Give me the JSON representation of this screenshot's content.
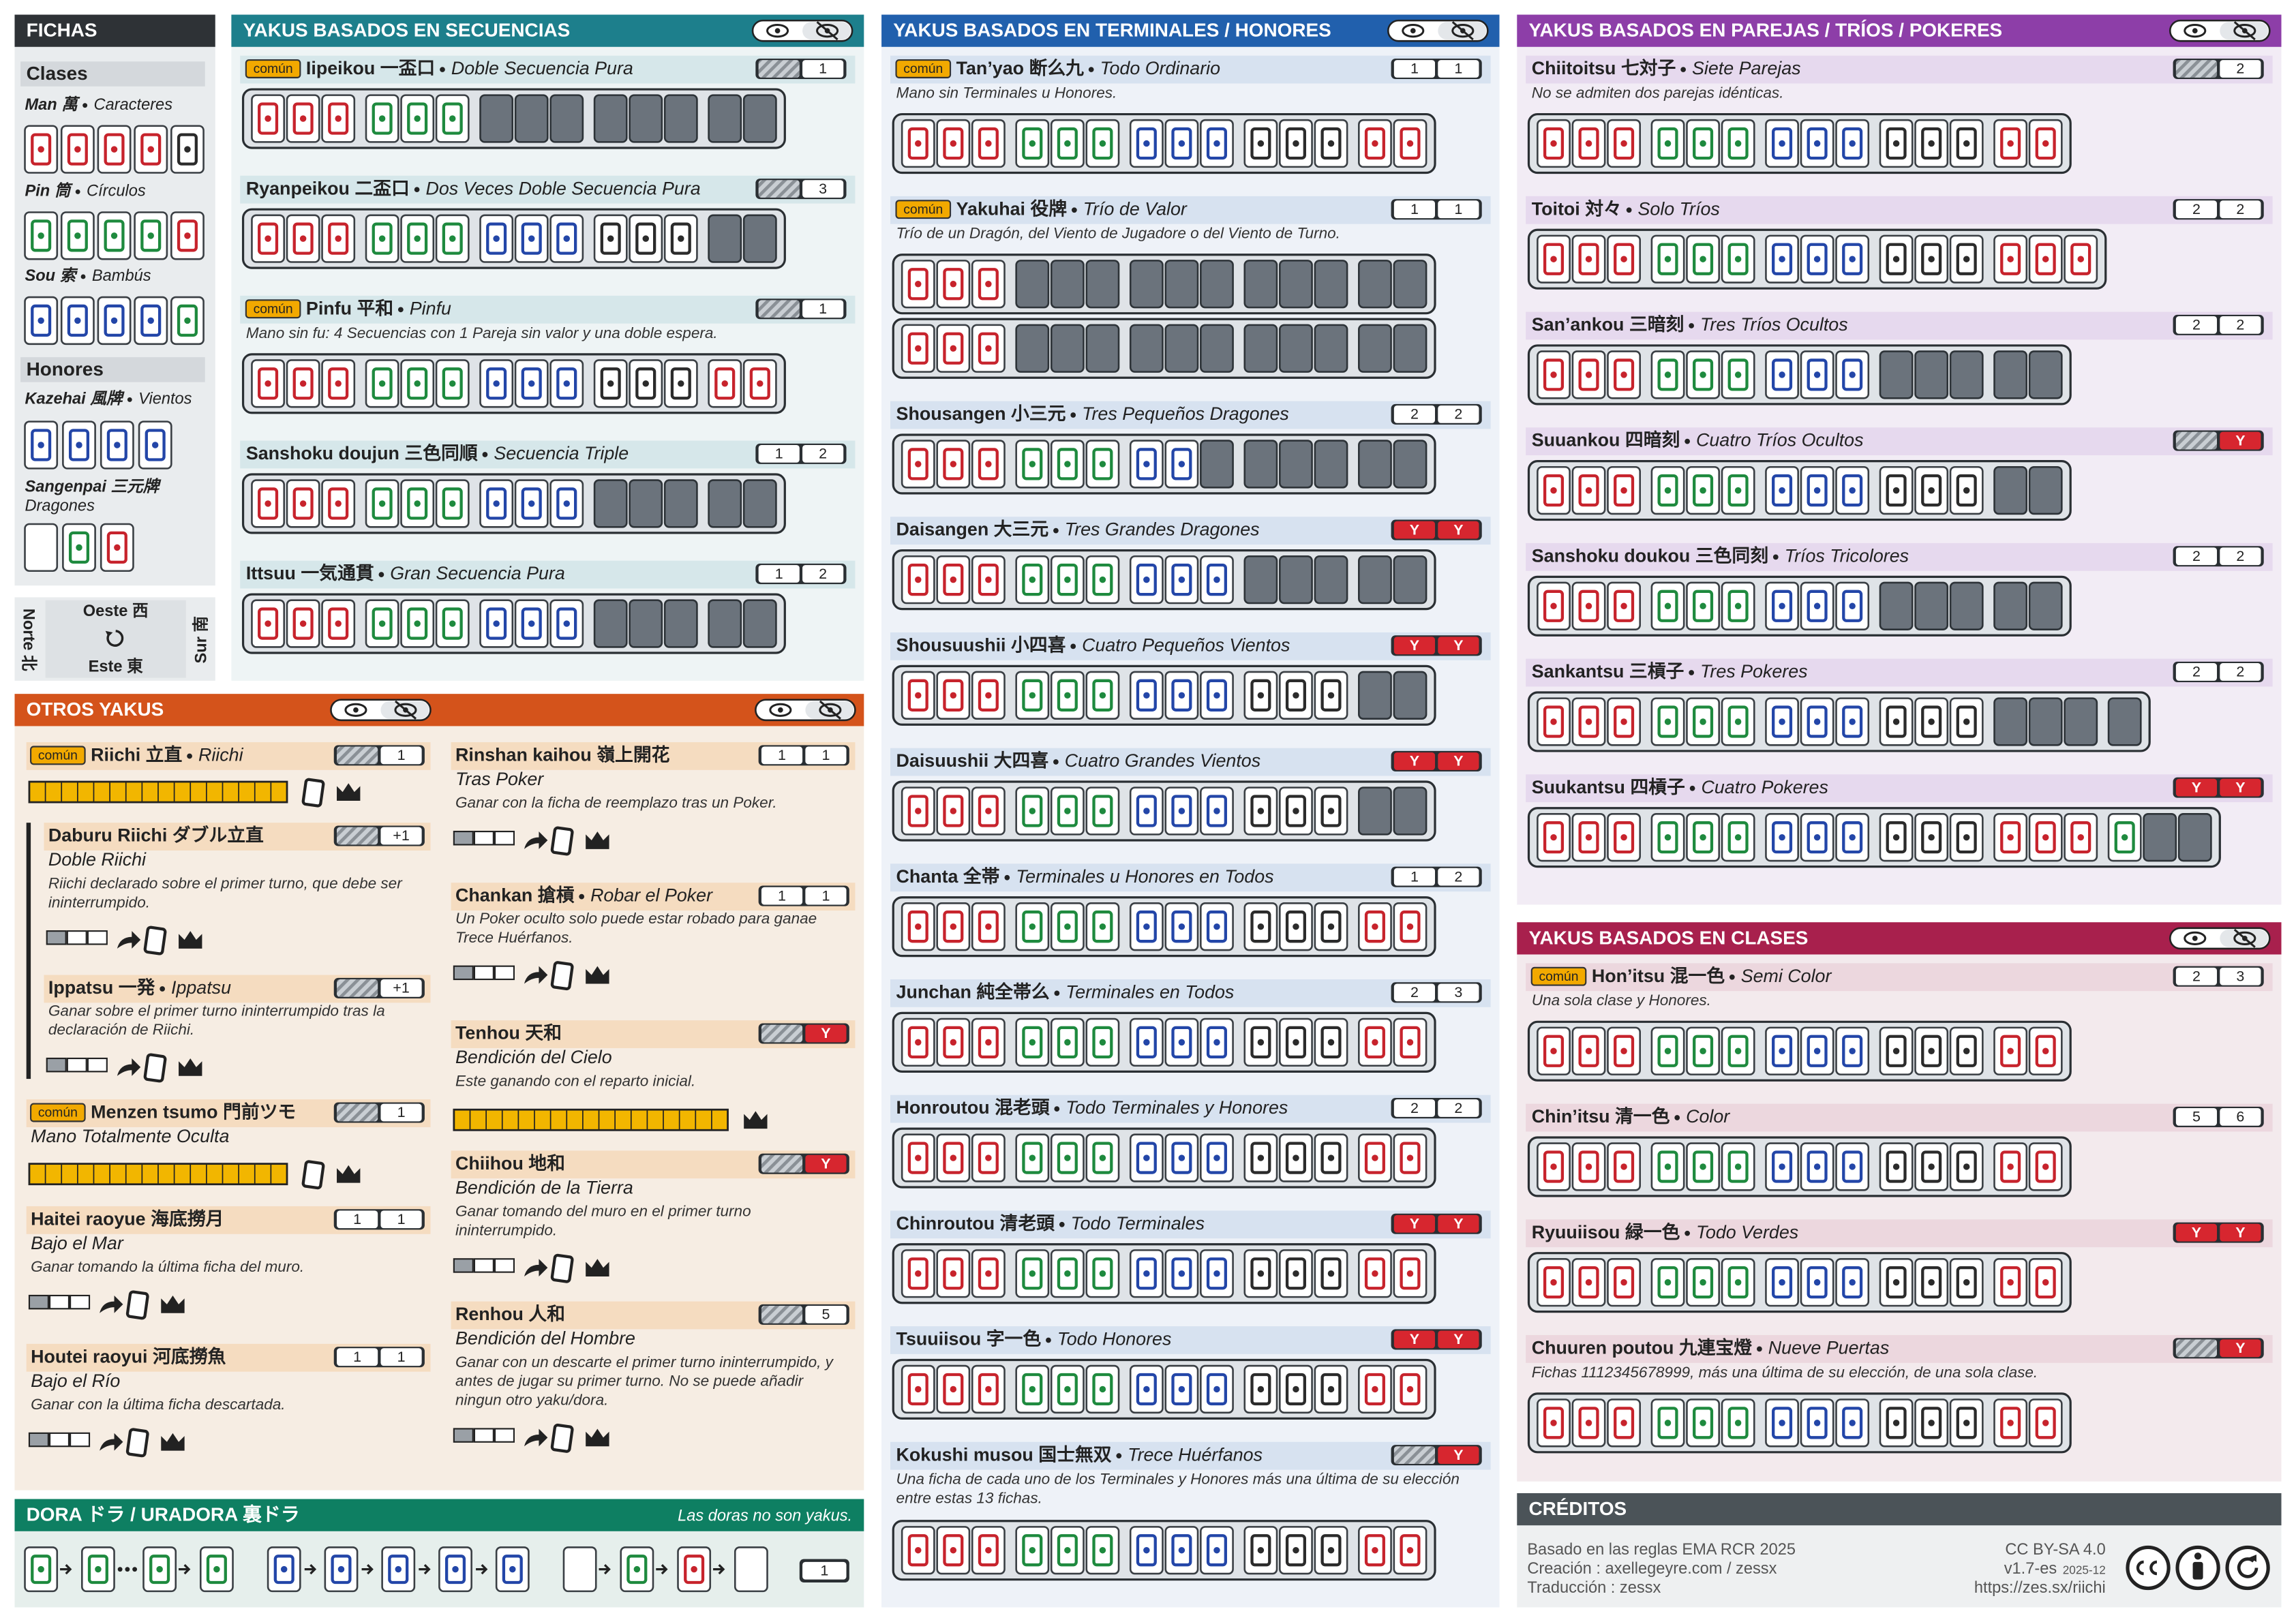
{
  "fichas": {
    "title": "FICHAS",
    "clases": {
      "title": "Clases",
      "items": [
        {
          "name": "Man 萬",
          "es": "Caracteres"
        },
        {
          "name": "Pin 筒",
          "es": "Círculos"
        },
        {
          "name": "Sou 索",
          "es": "Bambús"
        }
      ]
    },
    "honores": {
      "title": "Honores",
      "items": [
        {
          "name": "Kazehai 風牌",
          "es": "Vientos"
        },
        {
          "name": "Sangenpai 三元牌",
          "es": "Dragones"
        }
      ]
    }
  },
  "vientos": {
    "oeste": "Oeste 西",
    "este": "Este 東",
    "norte": "Norte 北",
    "sur": "Sur 南"
  },
  "sections": [
    {
      "title": "YAKUS BASADOS EN SECUENCIAS",
      "yakus": [
        {
          "comun": "común",
          "name": "Iipeikou 一盃口",
          "es": "Doble Secuencia Pura",
          "han": [
            null,
            "1"
          ]
        },
        {
          "name": "Ryanpeikou 二盃口",
          "es": "Dos Veces Doble Secuencia Pura",
          "han": [
            null,
            "3"
          ]
        },
        {
          "comun": "común",
          "name": "Pinfu 平和",
          "es": "Pinfu",
          "desc": "Mano sin fu: 4 Secuencias con 1 Pareja sin valor y una doble espera.",
          "han": [
            null,
            "1"
          ]
        },
        {
          "name": "Sanshoku doujun 三色同順",
          "es": "Secuencia Triple",
          "han": [
            "1",
            "2"
          ]
        },
        {
          "name": "Ittsuu 一気通貫",
          "es": "Gran Secuencia Pura",
          "han": [
            "1",
            "2"
          ]
        }
      ]
    },
    {
      "title": "YAKUS BASADOS EN TERMINALES / HONORES",
      "yakus": [
        {
          "comun": "común",
          "name": "Tan’yao 断么九",
          "es": "Todo Ordinario",
          "desc": "Mano sin Terminales u Honores.",
          "han": [
            "1",
            "1"
          ]
        },
        {
          "comun": "común",
          "name": "Yakuhai 役牌",
          "es": "Trío de Valor",
          "desc": "Trío de un Dragón, del Viento de Jugadore o del Viento de Turno.",
          "han": [
            "1",
            "1"
          ]
        },
        {
          "name": "Shousangen 小三元",
          "es": "Tres Pequeños Dragones",
          "han": [
            "2",
            "2"
          ]
        },
        {
          "name": "Daisangen 大三元",
          "es": "Tres Grandes Dragones",
          "han": [
            "Y",
            "Y"
          ]
        },
        {
          "name": "Shousuushii 小四喜",
          "es": "Cuatro Pequeños Vientos",
          "han": [
            "Y",
            "Y"
          ]
        },
        {
          "name": "Daisuushii 大四喜",
          "es": "Cuatro Grandes Vientos",
          "han": [
            "Y",
            "Y"
          ]
        },
        {
          "name": "Chanta 全帯",
          "es": "Terminales u Honores en Todos",
          "han": [
            "1",
            "2"
          ]
        },
        {
          "name": "Junchan 純全帯么",
          "es": "Terminales en Todos",
          "han": [
            "2",
            "3"
          ]
        },
        {
          "name": "Honroutou 混老頭",
          "es": "Todo Terminales y Honores",
          "han": [
            "2",
            "2"
          ]
        },
        {
          "name": "Chinroutou 清老頭",
          "es": "Todo Terminales",
          "han": [
            "Y",
            "Y"
          ]
        },
        {
          "name": "Tsuuiisou 字一色",
          "es": "Todo Honores",
          "han": [
            "Y",
            "Y"
          ]
        },
        {
          "name": "Kokushi musou 国士無双",
          "es": "Trece Huérfanos",
          "desc": "Una ficha de cada uno de los Terminales y Honores más una última de su elección entre estas 13 fichas.",
          "han": [
            null,
            "Y"
          ]
        }
      ]
    },
    {
      "title": "YAKUS BASADOS EN PAREJAS / TRÍOS / POKERES",
      "yakus": [
        {
          "name": "Chiitoitsu 七対子",
          "es": "Siete Parejas",
          "desc": "No se admiten dos parejas idénticas.",
          "han": [
            null,
            "2"
          ]
        },
        {
          "name": "Toitoi 対々",
          "es": "Solo Tríos",
          "han": [
            "2",
            "2"
          ]
        },
        {
          "name": "San’ankou 三暗刻",
          "es": "Tres Tríos Ocultos",
          "han": [
            "2",
            "2"
          ]
        },
        {
          "name": "Suuankou 四暗刻",
          "es": "Cuatro Tríos Ocultos",
          "han": [
            null,
            "Y"
          ]
        },
        {
          "name": "Sanshoku doukou 三色同刻",
          "es": "Tríos Tricolores",
          "han": [
            "2",
            "2"
          ]
        },
        {
          "name": "Sankantsu 三槓子",
          "es": "Tres Pokeres",
          "han": [
            "2",
            "2"
          ]
        },
        {
          "name": "Suukantsu 四槓子",
          "es": "Cuatro Pokeres",
          "han": [
            "Y",
            "Y"
          ]
        }
      ]
    },
    {
      "title": "YAKUS BASADOS EN CLASES",
      "yakus": [
        {
          "comun": "común",
          "name": "Hon’itsu 混一色",
          "es": "Semi Color",
          "desc": "Una sola clase y Honores.",
          "han": [
            "2",
            "3"
          ]
        },
        {
          "name": "Chin’itsu 清一色",
          "es": "Color",
          "han": [
            "5",
            "6"
          ]
        },
        {
          "name": "Ryuuiisou 緑一色",
          "es": "Todo Verdes",
          "han": [
            "Y",
            "Y"
          ]
        },
        {
          "name": "Chuuren poutou 九連宝燈",
          "es": "Nueve Puertas",
          "desc": "Fichas 1112345678999, más una última de su elección, de una sola clase.",
          "han": [
            null,
            "Y"
          ]
        }
      ]
    }
  ],
  "otros": {
    "title": "OTROS YAKUS",
    "left": [
      {
        "comun": "común",
        "name": "Riichi 立直",
        "es": "Riichi",
        "han": [
          null,
          "1"
        ]
      },
      {
        "name": "Daburu Riichi ダブル立直",
        "es": "Doble Riichi",
        "desc": "Riichi declarado sobre el primer turno, que debe ser ininterrumpido.",
        "han": [
          null,
          "+1"
        ]
      },
      {
        "name": "Ippatsu 一発",
        "es": "Ippatsu",
        "desc": "Ganar sobre el primer turno ininterrumpido tras la declaración de Riichi.",
        "han": [
          null,
          "+1"
        ]
      },
      {
        "comun": "común",
        "name": "Menzen tsumo 門前ツモ",
        "es": "Mano Totalmente Oculta",
        "han": [
          null,
          "1"
        ]
      },
      {
        "name": "Haitei raoyue 海底撈月",
        "es": "Bajo el Mar",
        "desc": "Ganar tomando la última ficha del muro.",
        "han": [
          "1",
          "1"
        ]
      },
      {
        "name": "Houtei raoyui 河底撈魚",
        "es": "Bajo el Río",
        "desc": "Ganar con la última ficha descartada.",
        "han": [
          "1",
          "1"
        ]
      }
    ],
    "right": [
      {
        "name": "Rinshan kaihou 嶺上開花",
        "es": "Tras Poker",
        "desc": "Ganar con la ficha de reemplazo tras un Poker.",
        "han": [
          "1",
          "1"
        ]
      },
      {
        "name": "Chankan 搶槓",
        "es": "Robar el Poker",
        "desc": "Un Poker oculto solo puede estar robado para ganae Trece Huérfanos.",
        "han": [
          "1",
          "1"
        ]
      },
      {
        "name": "Tenhou 天和",
        "es": "Bendición del Cielo",
        "desc": "Este ganando con el reparto inicial.",
        "han": [
          null,
          "Y"
        ]
      },
      {
        "name": "Chiihou 地和",
        "es": "Bendición de la Tierra",
        "desc": "Ganar tomando del muro en el primer turno ininterrumpido.",
        "han": [
          null,
          "Y"
        ]
      },
      {
        "name": "Renhou 人和",
        "es": "Bendición del Hombre",
        "desc": "Ganar con un descarte el primer turno ininterrumpido, y antes de jugar su primer turno. No se puede añadir ningun otro yaku/dora.",
        "han": [
          null,
          "5"
        ]
      }
    ]
  },
  "dora": {
    "title": "DORA ドラ / URADORA 裏ドラ",
    "note": "Las doras no son yakus.",
    "han": "1"
  },
  "creditos": {
    "title": "CRÉDITOS",
    "lines": [
      "Basado en las reglas EMA RCR 2025",
      "Creación : axellegeyre.com / zessx",
      "Traducción : zessx"
    ],
    "license": "CC BY-SA 4.0",
    "version": "v1.7-es",
    "date": "2025-12",
    "url": "https://zes.sx/riichi"
  }
}
